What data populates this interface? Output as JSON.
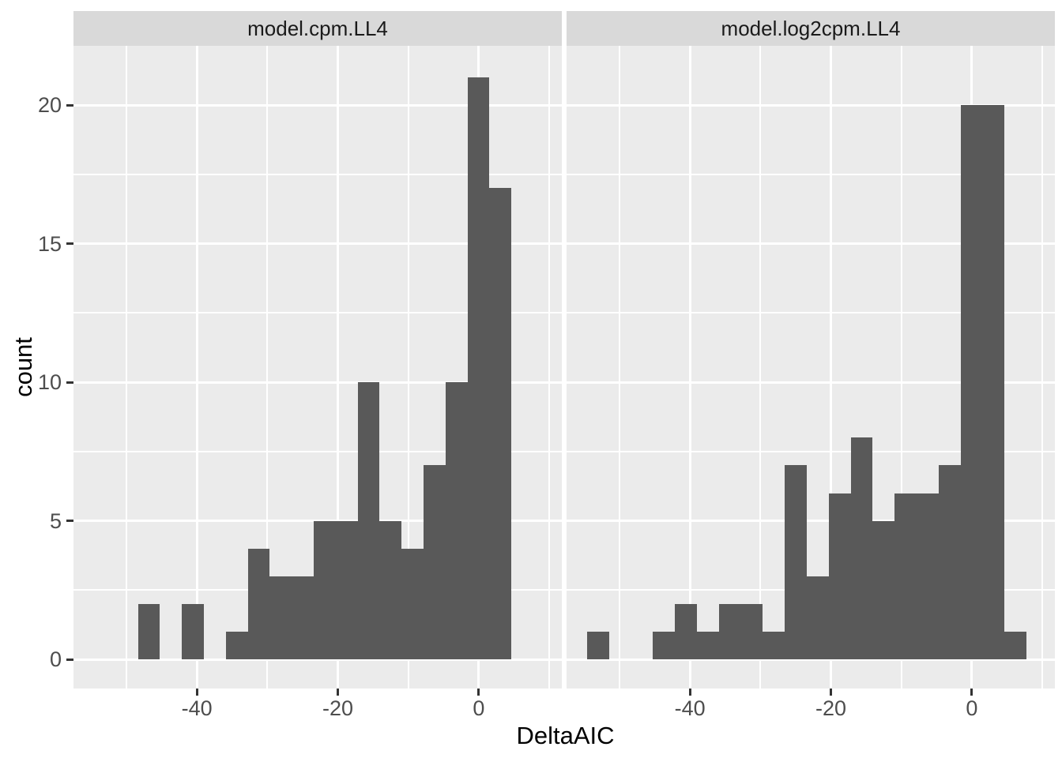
{
  "colors": {
    "background": "#FFFFFF",
    "panel_background": "#EBEBEB",
    "strip_background": "#D9D9D9",
    "bar_fill": "#595959",
    "gridline": "#FFFFFF",
    "tick_text": "#4D4D4D",
    "tick_mark": "#333333",
    "title_text": "#000000",
    "strip_text": "#1A1A1A"
  },
  "chart_data": {
    "type": "bar",
    "subtype": "faceted-histogram",
    "xlabel": "DeltaAIC",
    "ylabel": "count",
    "x_axis": {
      "tick_values": [
        -40,
        -20,
        0
      ],
      "tick_labels": [
        "-40",
        "-20",
        "0"
      ],
      "minor_values": [
        -50,
        -30,
        -10,
        10
      ],
      "range": [
        -57.5,
        11.8
      ]
    },
    "y_axis": {
      "tick_values": [
        0,
        5,
        10,
        15,
        20
      ],
      "tick_labels": [
        "0",
        "5",
        "10",
        "15",
        "20"
      ],
      "minor_values": [
        2.5,
        7.5,
        12.5,
        17.5
      ],
      "range": [
        -1.05,
        22.1
      ]
    },
    "binwidth": 3.12,
    "grid": "on",
    "legend": "none",
    "facets": [
      {
        "label": "model.cpm.LL4",
        "bins": [
          [
            -48.36,
            -45.24,
            2
          ],
          [
            -45.24,
            -42.12,
            0
          ],
          [
            -42.12,
            -39.01,
            2
          ],
          [
            -39.01,
            -35.89,
            0
          ],
          [
            -35.89,
            -32.77,
            1
          ],
          [
            -32.77,
            -29.65,
            4
          ],
          [
            -29.65,
            -26.54,
            3
          ],
          [
            -26.54,
            -23.42,
            3
          ],
          [
            -23.42,
            -20.3,
            5
          ],
          [
            -20.3,
            -17.19,
            5
          ],
          [
            -17.19,
            -14.07,
            10
          ],
          [
            -14.07,
            -10.95,
            5
          ],
          [
            -10.95,
            -7.83,
            4
          ],
          [
            -7.83,
            -4.72,
            7
          ],
          [
            -4.72,
            -1.6,
            10
          ],
          [
            -1.6,
            1.52,
            21
          ],
          [
            1.52,
            4.63,
            17
          ]
        ]
      },
      {
        "label": "model.log2cpm.LL4",
        "bins": [
          [
            -54.59,
            -51.47,
            1
          ],
          [
            -51.47,
            -48.36,
            0
          ],
          [
            -48.36,
            -45.24,
            0
          ],
          [
            -45.24,
            -42.12,
            1
          ],
          [
            -42.12,
            -39.01,
            2
          ],
          [
            -39.01,
            -35.89,
            1
          ],
          [
            -35.89,
            -32.77,
            2
          ],
          [
            -32.77,
            -29.65,
            2
          ],
          [
            -29.65,
            -26.54,
            1
          ],
          [
            -26.54,
            -23.42,
            7
          ],
          [
            -23.42,
            -20.3,
            3
          ],
          [
            -20.3,
            -17.19,
            6
          ],
          [
            -17.19,
            -14.07,
            8
          ],
          [
            -14.07,
            -10.95,
            5
          ],
          [
            -10.95,
            -7.83,
            6
          ],
          [
            -7.83,
            -4.72,
            6
          ],
          [
            -4.72,
            -1.6,
            7
          ],
          [
            -1.6,
            1.52,
            20
          ],
          [
            1.52,
            4.63,
            20
          ],
          [
            4.63,
            7.75,
            1
          ]
        ]
      }
    ]
  }
}
